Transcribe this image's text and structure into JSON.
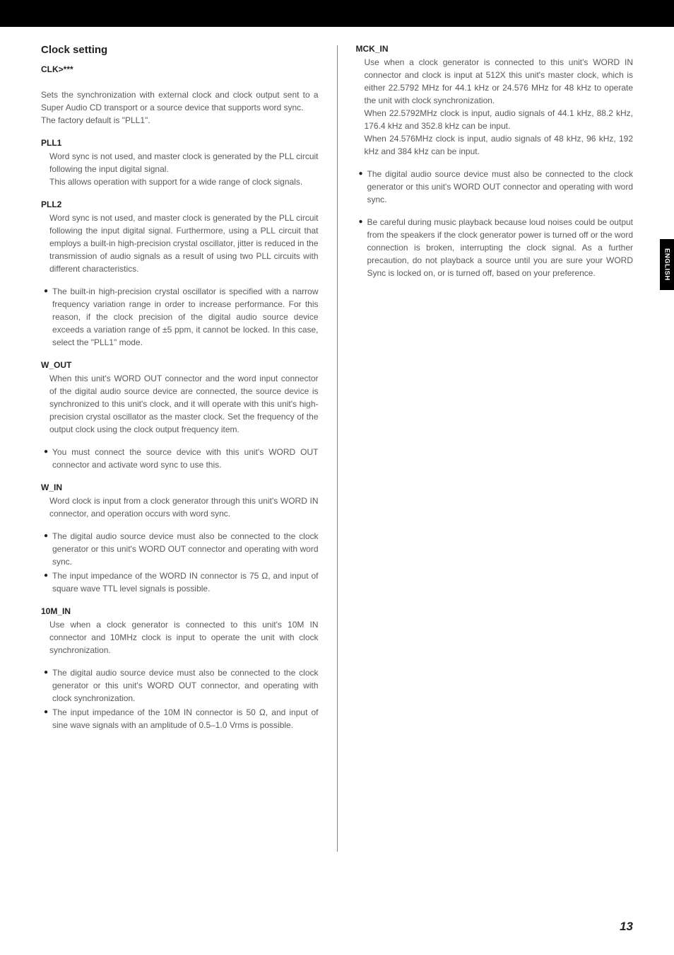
{
  "sideTab": "ENGLISH",
  "pageNumber": "13",
  "left": {
    "title": "Clock setting",
    "sub": "CLK>***",
    "intro1": "Sets the synchronization with external clock and clock output sent to a Super Audio CD transport or a source device that supports word sync.",
    "intro2": "The factory default is \"PLL1\".",
    "pll1": {
      "label": "PLL1",
      "p1": "Word sync is not used, and master clock is generated by the PLL circuit following the input digital signal.",
      "p2": "This allows operation with support for a wide range of clock signals."
    },
    "pll2": {
      "label": "PLL2",
      "p1": "Word sync is not used, and master clock is generated by the PLL circuit following the input digital signal. Furthermore, using a PLL circuit that employs a built-in high-precision crystal oscillator, jitter is reduced in the transmission of audio signals as a result of using two PLL circuits with different characteristics."
    },
    "pll2_bullet": "The built-in high-precision crystal oscillator is specified with a narrow frequency variation range in order to increase performance. For this reason, if the clock precision of the digital audio source device exceeds a variation range of ±5 ppm, it cannot be locked. In this case, select the \"PLL1\" mode.",
    "wout": {
      "label": "W_OUT",
      "p1": "When this unit's WORD OUT connector and the word input connector of the digital audio source device are connected, the source device is synchronized to this unit's clock, and it will operate with this unit's high-precision crystal oscillator as the master clock. Set the frequency of the output clock using the clock output frequency item."
    },
    "wout_bullet": "You must connect the source device with this unit's WORD OUT connector and activate word sync to use this.",
    "win": {
      "label": "W_IN",
      "p1": "Word clock is input from a clock generator through this unit's WORD IN connector, and operation occurs with word sync."
    },
    "win_b1": "The digital audio source device must also be connected to the clock generator or this unit's WORD OUT connector and operating with word sync.",
    "win_b2": "The input impedance of the WORD IN connector is 75 Ω, and input of square wave TTL level signals is possible.",
    "tenm": {
      "label": "10M_IN",
      "p1": "Use when a clock generator is connected to this unit's 10M IN connector and 10MHz clock is input to operate the unit with clock synchronization."
    },
    "tenm_b1": "The digital audio source device must also be connected to the clock generator or this unit's WORD OUT connector, and operating with clock synchronization.",
    "tenm_b2": "The input impedance of the 10M IN connector is 50 Ω, and input of sine wave signals with an amplitude of 0.5–1.0 Vrms is possible."
  },
  "right": {
    "mck": {
      "label": "MCK_IN",
      "p1": "Use when a clock generator is connected to this unit's WORD IN connector and clock is input at 512X this unit's master clock, which is either 22.5792 MHz for 44.1 kHz or 24.576 MHz for 48 kHz to operate the unit with clock synchronization.",
      "p2": "When 22.5792MHz clock is input, audio signals of 44.1 kHz, 88.2 kHz, 176.4 kHz and 352.8 kHz can be input.",
      "p3": "When 24.576MHz clock is input, audio signals of 48 kHz, 96 kHz, 192 kHz and 384 kHz can be input."
    },
    "b1": "The digital audio source device must also be connected to the clock generator or this unit's WORD OUT connector and operating with word sync.",
    "b2": "Be careful during music playback because loud noises could be output from the speakers if the clock generator power is turned off or the word connection is broken, interrupting the clock signal. As a further precaution, do not playback a source until you are sure your WORD Sync is locked on, or is turned off, based on your preference."
  }
}
